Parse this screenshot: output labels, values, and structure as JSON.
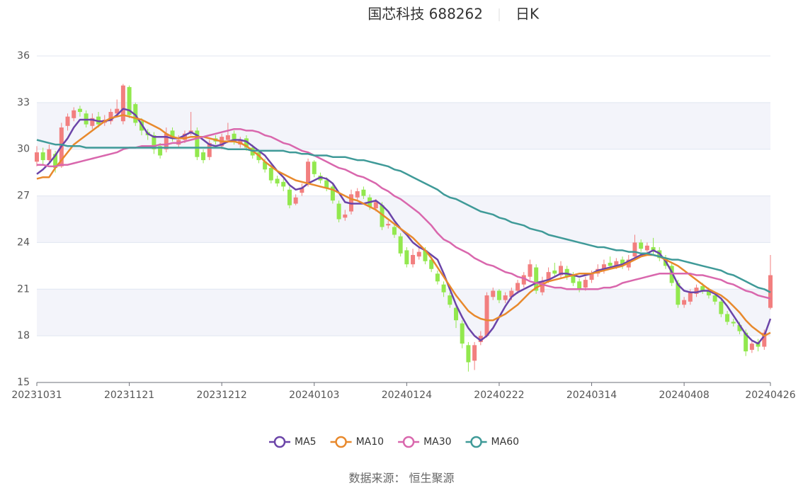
{
  "chart_data": {
    "type": "candlestick",
    "title": "国芯科技 688262",
    "subtitle": "日K",
    "source": "数据来源： 恒生聚源",
    "categories": [
      "20231031",
      null,
      null,
      null,
      null,
      null,
      null,
      null,
      null,
      null,
      null,
      null,
      null,
      null,
      null,
      "20231121",
      null,
      null,
      null,
      null,
      null,
      null,
      null,
      null,
      null,
      null,
      null,
      null,
      null,
      null,
      "20231212",
      null,
      null,
      null,
      null,
      null,
      null,
      null,
      null,
      null,
      null,
      null,
      null,
      null,
      null,
      "20240103",
      null,
      null,
      null,
      null,
      null,
      null,
      null,
      null,
      null,
      null,
      null,
      null,
      null,
      null,
      "20240124",
      null,
      null,
      null,
      null,
      null,
      null,
      null,
      null,
      null,
      null,
      null,
      null,
      null,
      null,
      "20240222",
      null,
      null,
      null,
      null,
      null,
      null,
      null,
      null,
      null,
      null,
      null,
      null,
      null,
      null,
      "20240314",
      null,
      null,
      null,
      null,
      null,
      null,
      null,
      null,
      null,
      null,
      null,
      null,
      null,
      null,
      "20240408",
      null,
      null,
      null,
      null,
      null,
      null,
      null,
      null,
      null,
      null,
      null,
      null,
      null,
      "20240426"
    ],
    "open": [
      29.2,
      29.8,
      29.3,
      29.7,
      28.9,
      31.5,
      32.0,
      32.6,
      32.3,
      31.5,
      32.1,
      31.7,
      31.8,
      32.3,
      31.8,
      34.0,
      32.9,
      31.8,
      31.1,
      30.9,
      30.2,
      30.0,
      31.2,
      30.3,
      30.6,
      31.1,
      31.2,
      29.8,
      29.5,
      30.7,
      30.2,
      30.6,
      31.0,
      30.3,
      30.7,
      30.1,
      29.8,
      29.2,
      28.8,
      28.1,
      27.9,
      27.4,
      26.5,
      27.2,
      27.8,
      29.2,
      28.3,
      28.0,
      27.6,
      26.5,
      25.6,
      26.0,
      26.9,
      27.4,
      26.9,
      26.2,
      26.4,
      25.1,
      25.0,
      24.4,
      23.5,
      22.6,
      23.1,
      23.5,
      22.9,
      22.0,
      21.3,
      20.6,
      19.8,
      18.8,
      17.4,
      16.4,
      17.6,
      18.0,
      20.5,
      20.9,
      20.3,
      20.5,
      20.9,
      21.3,
      21.8,
      22.4,
      20.8,
      21.6,
      22.2,
      21.9,
      22.3,
      21.9,
      21.5,
      21.1,
      21.6,
      22.0,
      22.2,
      22.7,
      22.5,
      22.9,
      22.4,
      23.1,
      24.0,
      23.5,
      23.7,
      23.5,
      23.0,
      22.5,
      21.4,
      20.0,
      20.2,
      20.7,
      21.2,
      20.9,
      20.6,
      20.2,
      19.4,
      18.9,
      18.7,
      18.2,
      17.1,
      17.6,
      17.3,
      19.8
    ],
    "close": [
      29.8,
      29.3,
      30.0,
      28.8,
      31.4,
      32.1,
      32.5,
      32.4,
      31.6,
      32.0,
      31.6,
      31.9,
      32.4,
      32.6,
      34.1,
      32.2,
      31.7,
      31.2,
      30.9,
      30.0,
      29.6,
      31.0,
      30.8,
      30.6,
      31.0,
      31.2,
      29.5,
      29.3,
      30.4,
      30.5,
      30.8,
      30.9,
      30.5,
      30.6,
      30.1,
      29.6,
      29.3,
      28.7,
      28.0,
      27.8,
      27.6,
      26.4,
      26.9,
      27.5,
      29.2,
      28.4,
      28.0,
      27.5,
      26.7,
      25.5,
      25.8,
      27.1,
      27.3,
      27.0,
      26.3,
      26.6,
      25.0,
      25.2,
      24.5,
      23.3,
      22.6,
      23.2,
      23.4,
      22.8,
      22.3,
      21.5,
      20.8,
      20.0,
      19.0,
      17.5,
      16.3,
      17.4,
      18.0,
      20.6,
      20.9,
      20.3,
      20.6,
      20.9,
      21.4,
      21.9,
      22.6,
      20.9,
      21.5,
      22.1,
      22.0,
      22.5,
      21.8,
      21.4,
      21.0,
      21.6,
      22.0,
      22.3,
      22.6,
      22.5,
      22.8,
      22.5,
      22.9,
      24.0,
      23.6,
      23.8,
      23.4,
      23.0,
      22.5,
      21.4,
      20.0,
      20.3,
      20.8,
      21.1,
      20.9,
      20.6,
      20.2,
      19.4,
      18.9,
      18.8,
      18.3,
      17.0,
      17.5,
      17.3,
      18.2,
      21.9
    ],
    "high": [
      30.2,
      30.1,
      30.3,
      29.9,
      31.7,
      32.3,
      32.7,
      32.8,
      32.5,
      32.3,
      32.4,
      32.2,
      32.6,
      33.2,
      34.2,
      34.1,
      33.0,
      32.0,
      31.3,
      31.1,
      30.4,
      31.4,
      31.4,
      30.9,
      31.2,
      32.4,
      31.4,
      30.0,
      30.6,
      30.9,
      31.0,
      31.7,
      31.2,
      30.8,
      30.9,
      30.3,
      30.0,
      29.4,
      29.0,
      28.3,
      28.1,
      27.6,
      27.1,
      27.8,
      29.4,
      29.3,
      28.5,
      28.2,
      27.8,
      26.7,
      26.1,
      27.4,
      27.5,
      27.6,
      27.1,
      26.8,
      26.6,
      25.4,
      25.2,
      24.6,
      23.7,
      23.6,
      23.7,
      23.7,
      23.1,
      22.2,
      21.5,
      20.8,
      20.0,
      19.0,
      17.6,
      17.6,
      18.3,
      20.8,
      21.1,
      21.0,
      20.8,
      21.1,
      21.6,
      22.1,
      22.9,
      22.6,
      21.8,
      22.4,
      22.7,
      22.8,
      22.5,
      22.1,
      21.7,
      21.8,
      22.2,
      22.6,
      22.9,
      23.1,
      23.0,
      23.1,
      23.2,
      24.5,
      24.2,
      24.0,
      24.3,
      23.7,
      23.2,
      22.7,
      21.6,
      20.5,
      21.0,
      21.3,
      21.4,
      21.1,
      20.8,
      20.4,
      19.6,
      19.1,
      18.9,
      18.4,
      17.7,
      17.8,
      18.4,
      23.2
    ],
    "low": [
      28.9,
      29.0,
      29.1,
      28.5,
      28.8,
      31.2,
      31.8,
      32.1,
      31.4,
      31.3,
      31.4,
      31.5,
      31.6,
      32.1,
      31.6,
      32.0,
      31.5,
      30.9,
      30.6,
      29.7,
      29.4,
      29.8,
      30.5,
      30.1,
      30.4,
      30.9,
      29.3,
      29.1,
      29.3,
      30.3,
      30.0,
      30.4,
      30.3,
      30.1,
      29.9,
      29.4,
      29.1,
      28.5,
      27.8,
      27.6,
      27.3,
      26.2,
      26.4,
      27.0,
      27.6,
      28.2,
      27.8,
      27.3,
      26.5,
      25.3,
      25.4,
      25.8,
      26.7,
      26.8,
      26.1,
      26.0,
      24.8,
      24.9,
      24.3,
      23.1,
      22.4,
      22.4,
      22.9,
      22.6,
      22.1,
      21.3,
      20.5,
      19.8,
      18.5,
      17.2,
      15.7,
      15.8,
      17.4,
      17.9,
      20.3,
      20.1,
      20.1,
      20.3,
      20.7,
      21.1,
      21.6,
      20.7,
      20.6,
      21.4,
      21.8,
      21.7,
      21.6,
      21.2,
      20.8,
      20.9,
      21.4,
      21.8,
      22.0,
      22.3,
      22.3,
      22.3,
      22.2,
      22.9,
      23.4,
      23.3,
      23.2,
      22.8,
      22.3,
      21.2,
      19.8,
      19.8,
      20.0,
      20.5,
      20.7,
      20.4,
      20.0,
      19.2,
      18.7,
      18.6,
      18.1,
      16.7,
      16.9,
      17.0,
      17.1,
      19.7
    ],
    "up_color": "#f27f7f",
    "down_color": "#92e84e",
    "series": [
      {
        "name": "MA5",
        "color": "#6b44a8",
        "values": [
          28.4,
          28.7,
          29.1,
          29.6,
          30.2,
          30.7,
          31.4,
          31.9,
          31.9,
          31.9,
          31.8,
          31.8,
          31.9,
          32.2,
          32.6,
          32.5,
          32.2,
          31.6,
          31.0,
          30.8,
          30.8,
          30.8,
          30.7,
          30.7,
          30.9,
          31.1,
          30.9,
          30.6,
          30.3,
          30.2,
          30.3,
          30.5,
          30.6,
          30.6,
          30.5,
          30.2,
          29.9,
          29.6,
          29.1,
          28.6,
          28.2,
          27.7,
          27.4,
          27.5,
          27.8,
          28.0,
          28.2,
          28.1,
          27.8,
          27.2,
          26.6,
          26.5,
          26.5,
          26.5,
          26.6,
          26.7,
          26.4,
          26.0,
          25.4,
          24.9,
          24.5,
          24.0,
          23.7,
          23.5,
          23.2,
          22.9,
          22.0,
          21.0,
          20.0,
          19.2,
          18.5,
          18.0,
          17.7,
          18.0,
          18.5,
          19.2,
          19.9,
          20.5,
          20.8,
          21.0,
          21.2,
          21.4,
          21.5,
          21.6,
          21.8,
          22.0,
          22.0,
          21.9,
          21.8,
          21.9,
          22.0,
          22.2,
          22.3,
          22.4,
          22.5,
          22.6,
          22.8,
          23.0,
          23.2,
          23.3,
          23.5,
          23.3,
          22.8,
          22.1,
          21.3,
          20.9,
          20.8,
          20.8,
          20.9,
          20.9,
          20.7,
          20.4,
          19.9,
          19.3,
          18.7,
          18.1,
          17.7,
          17.5,
          18.0,
          19.1
        ]
      },
      {
        "name": "MA10",
        "color": "#e8892c",
        "values": [
          28.1,
          28.2,
          28.2,
          28.8,
          29.3,
          29.8,
          30.3,
          30.6,
          30.9,
          31.2,
          31.5,
          31.8,
          32.0,
          32.1,
          32.2,
          32.1,
          32.0,
          31.9,
          31.7,
          31.5,
          31.3,
          31.0,
          30.8,
          30.7,
          30.7,
          30.8,
          30.8,
          30.8,
          30.7,
          30.6,
          30.5,
          30.5,
          30.5,
          30.4,
          30.2,
          29.9,
          29.6,
          29.2,
          28.9,
          28.6,
          28.4,
          28.2,
          28.0,
          27.9,
          27.8,
          27.7,
          27.6,
          27.5,
          27.4,
          27.2,
          27.0,
          26.8,
          26.7,
          26.5,
          26.3,
          26.1,
          25.8,
          25.5,
          25.2,
          24.9,
          24.6,
          24.3,
          23.9,
          23.5,
          23.0,
          22.4,
          21.8,
          21.2,
          20.6,
          20.1,
          19.6,
          19.3,
          19.1,
          19.0,
          19.0,
          19.2,
          19.4,
          19.7,
          20.0,
          20.4,
          20.8,
          21.1,
          21.3,
          21.5,
          21.6,
          21.7,
          21.8,
          21.9,
          22.0,
          22.0,
          22.0,
          22.1,
          22.2,
          22.3,
          22.4,
          22.5,
          22.7,
          22.9,
          23.1,
          23.2,
          23.2,
          23.1,
          22.9,
          22.7,
          22.5,
          22.2,
          21.9,
          21.6,
          21.3,
          21.0,
          20.8,
          20.6,
          20.3,
          19.9,
          19.5,
          19.0,
          18.6,
          18.3,
          18.0,
          18.2
        ]
      },
      {
        "name": "MA30",
        "color": "#d967ad",
        "values": [
          29.0,
          29.0,
          28.9,
          28.9,
          29.0,
          29.0,
          29.1,
          29.2,
          29.3,
          29.4,
          29.5,
          29.6,
          29.7,
          29.8,
          30.0,
          30.1,
          30.1,
          30.2,
          30.2,
          30.2,
          30.3,
          30.3,
          30.4,
          30.4,
          30.5,
          30.6,
          30.7,
          30.8,
          30.9,
          31.0,
          31.1,
          31.2,
          31.3,
          31.3,
          31.2,
          31.2,
          31.1,
          30.9,
          30.8,
          30.6,
          30.4,
          30.3,
          30.1,
          29.9,
          29.8,
          29.6,
          29.4,
          29.2,
          29.0,
          28.8,
          28.7,
          28.5,
          28.3,
          28.2,
          28.0,
          27.8,
          27.5,
          27.3,
          27.0,
          26.8,
          26.5,
          26.2,
          25.9,
          25.5,
          25.1,
          24.6,
          24.2,
          24.0,
          23.7,
          23.5,
          23.3,
          23.0,
          22.8,
          22.6,
          22.5,
          22.3,
          22.1,
          22.0,
          21.8,
          21.7,
          21.5,
          21.4,
          21.3,
          21.2,
          21.1,
          21.1,
          21.0,
          21.0,
          21.0,
          21.0,
          21.0,
          21.0,
          21.1,
          21.1,
          21.2,
          21.4,
          21.5,
          21.6,
          21.7,
          21.8,
          21.9,
          22.0,
          22.0,
          22.0,
          22.0,
          22.0,
          22.0,
          21.9,
          21.9,
          21.8,
          21.7,
          21.6,
          21.4,
          21.3,
          21.1,
          20.9,
          20.8,
          20.6,
          20.5,
          20.4
        ]
      },
      {
        "name": "MA60",
        "color": "#3f9a98",
        "values": [
          30.6,
          30.5,
          30.4,
          30.3,
          30.3,
          30.2,
          30.2,
          30.2,
          30.1,
          30.1,
          30.1,
          30.1,
          30.1,
          30.1,
          30.1,
          30.1,
          30.1,
          30.1,
          30.1,
          30.1,
          30.1,
          30.1,
          30.1,
          30.1,
          30.1,
          30.1,
          30.1,
          30.1,
          30.1,
          30.1,
          30.1,
          30.0,
          30.0,
          30.0,
          30.0,
          29.9,
          29.9,
          29.9,
          29.9,
          29.9,
          29.9,
          29.8,
          29.8,
          29.7,
          29.7,
          29.6,
          29.6,
          29.6,
          29.5,
          29.5,
          29.5,
          29.4,
          29.3,
          29.3,
          29.2,
          29.1,
          29.0,
          28.9,
          28.7,
          28.6,
          28.4,
          28.2,
          28.0,
          27.8,
          27.6,
          27.4,
          27.1,
          26.9,
          26.8,
          26.6,
          26.4,
          26.2,
          26.0,
          25.9,
          25.8,
          25.6,
          25.5,
          25.3,
          25.2,
          25.1,
          24.9,
          24.8,
          24.7,
          24.5,
          24.4,
          24.3,
          24.2,
          24.1,
          24.0,
          23.9,
          23.8,
          23.7,
          23.7,
          23.6,
          23.5,
          23.5,
          23.4,
          23.4,
          23.3,
          23.3,
          23.2,
          23.1,
          23.0,
          22.9,
          22.9,
          22.8,
          22.7,
          22.6,
          22.5,
          22.4,
          22.3,
          22.2,
          22.0,
          21.9,
          21.7,
          21.5,
          21.3,
          21.1,
          21.0,
          20.8
        ]
      }
    ],
    "ylim": [
      15,
      36
    ],
    "yticks": [
      15,
      18,
      21,
      24,
      27,
      30,
      33,
      36
    ],
    "grid": true
  }
}
